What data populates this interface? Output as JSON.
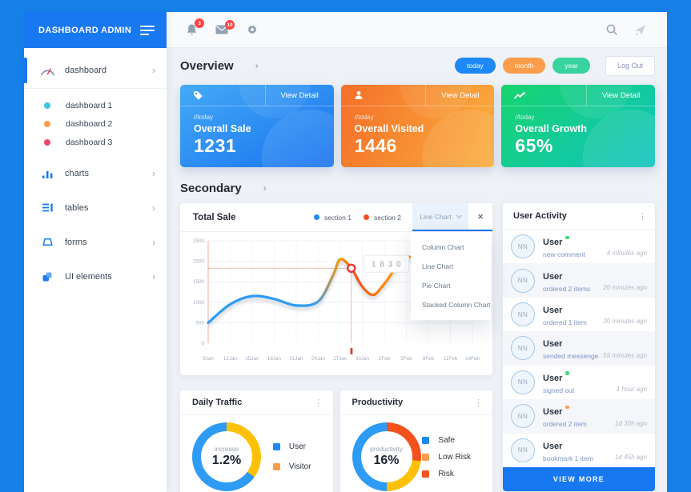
{
  "icons": {
    "kebab": "⋮",
    "close": "×",
    "chevron": "›"
  },
  "sidebar": {
    "title": "DASHBOARD ADMIN",
    "items": [
      {
        "label": "dashboard",
        "icon": "gauge-icon",
        "active": true
      },
      {
        "label": "dashboard 1",
        "dot_color": "#3ec6e0"
      },
      {
        "label": "dashboard 2",
        "dot_color": "#fb9d4b"
      },
      {
        "label": "dashboard 3",
        "dot_color": "#f0426a"
      },
      {
        "label": "charts",
        "icon": "bar-chart-icon"
      },
      {
        "label": "tables",
        "icon": "table-icon"
      },
      {
        "label": "forms",
        "icon": "form-icon"
      },
      {
        "label": "UI elements",
        "icon": "ui-elements-icon"
      }
    ]
  },
  "topbar": {
    "notification_count": "3",
    "message_count": "10"
  },
  "overview": {
    "title": "Overview",
    "filters": [
      {
        "label": "today",
        "color": "#1e88f8"
      },
      {
        "label": "month",
        "color": "#fb9d4b"
      },
      {
        "label": "year",
        "color": "#38d39f"
      }
    ],
    "logout_label": "Log Out",
    "cards": [
      {
        "tag": "//today",
        "title": "Overall Sale",
        "value": "1231",
        "view_detail": "View Detail",
        "icon": "tag-icon",
        "theme": "blue"
      },
      {
        "tag": "//today",
        "title": "Overall Visited",
        "value": "1446",
        "view_detail": "View Detail",
        "icon": "person-icon",
        "theme": "orange"
      },
      {
        "tag": "//today",
        "title": "Overall Growth",
        "value": "65%",
        "view_detail": "View Detail",
        "icon": "trend-up-icon",
        "theme": "green"
      }
    ]
  },
  "secondary": {
    "title": "Secondary"
  },
  "total_sale": {
    "title": "Total Sale",
    "legend": [
      {
        "label": "section 1",
        "color": "#1e88f8"
      },
      {
        "label": "section 2",
        "color": "#f4511e"
      }
    ],
    "chart_type_select": {
      "value": "Line Chart",
      "options": [
        "Column Chart",
        "Line Chart",
        "Pie Chart",
        "Stacked Column Chart"
      ]
    }
  },
  "activity": {
    "title": "User Activity",
    "avatar_text": "NN",
    "view_more": "VIEW MORE",
    "items": [
      {
        "name": "User",
        "status": "green",
        "action": "new comment",
        "time": "4 minutes ago"
      },
      {
        "name": "User",
        "status": "",
        "action": "ordered 2 items",
        "time": "20 minutes ago"
      },
      {
        "name": "User",
        "status": "",
        "action": "ordered 1 item",
        "time": "30 minutes ago"
      },
      {
        "name": "User",
        "status": "",
        "action": "sended messenge",
        "time": "55 minutes ago"
      },
      {
        "name": "User",
        "status": "green",
        "action": "signed out",
        "time": "1 hour ago"
      },
      {
        "name": "User",
        "status": "orange",
        "action": "ordered 2 item",
        "time": "1d 30h ago"
      },
      {
        "name": "User",
        "status": "",
        "action": "bookmark 1 item",
        "time": "1d 45h ago"
      }
    ]
  },
  "chart_data": [
    {
      "type": "line",
      "title": "Total Sale",
      "x_tick_labels": [
        "9Jan",
        "12Jan",
        "15Jan",
        "18Jan",
        "21Jan",
        "24Jan",
        "27Jan",
        "30Jan",
        "2Feb",
        "5Feb",
        "8Feb",
        "11Feb",
        "14Feb"
      ],
      "x_range": [
        0,
        36
      ],
      "ylim": [
        0,
        2500
      ],
      "y_ticks": [
        0,
        500,
        1000,
        1500,
        2000,
        2500
      ],
      "grid": true,
      "series": [
        {
          "name": "total sale",
          "x": [
            0,
            3,
            6,
            9,
            12,
            15,
            17,
            18,
            19.5,
            21,
            22.5,
            24,
            27,
            30,
            33,
            36
          ],
          "values": [
            500,
            950,
            1150,
            1080,
            920,
            1020,
            1650,
            2050,
            1830,
            1380,
            1180,
            1450,
            2100,
            1850,
            1950,
            2150
          ]
        }
      ],
      "line_gradient": [
        "#2e9cf4",
        "#2e9cf4",
        "#ff9800",
        "#f4511e",
        "#ff9800",
        "#f4511e"
      ],
      "marker": {
        "x": 19.5,
        "y": 1830,
        "label": "1 8 3 0",
        "color": "#e53935"
      }
    },
    {
      "type": "pie",
      "title": "Daily Traffic",
      "center_label": "increase",
      "center_value": "1.2%",
      "segments": [
        {
          "label": "Visitor",
          "value": 35,
          "color": "#fec107"
        },
        {
          "label": "User",
          "value": 65,
          "color": "#2e9bf5"
        }
      ],
      "legend": [
        {
          "label": "User",
          "color": "#1e88f8"
        },
        {
          "label": "Visitor",
          "color": "#fb9d4b"
        }
      ]
    },
    {
      "type": "pie",
      "title": "Productivity",
      "center_label": "productivity",
      "center_value": "16%",
      "segments": [
        {
          "label": "Risk",
          "value": 27,
          "color": "#f4511e"
        },
        {
          "label": "Low Risk",
          "value": 23,
          "color": "#fec107"
        },
        {
          "label": "Safe",
          "value": 50,
          "color": "#2e9bf5"
        }
      ],
      "legend": [
        {
          "label": "Safe",
          "color": "#1e88f8"
        },
        {
          "label": "Low Risk",
          "color": "#fb9d4b"
        },
        {
          "label": "Risk",
          "color": "#f4511e"
        }
      ]
    }
  ]
}
